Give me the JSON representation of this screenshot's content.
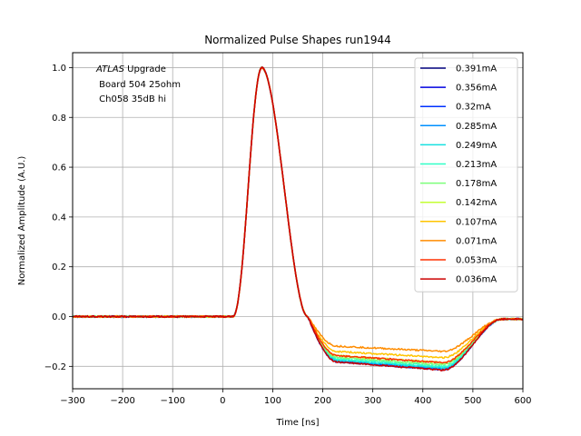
{
  "chart_data": {
    "type": "line",
    "title": "Normalized Pulse Shapes run1944",
    "xlabel": "Time [ns]",
    "ylabel": "Normalized Amplitude (A.U.)",
    "xlim": [
      -300,
      600
    ],
    "ylim": [
      -0.29,
      1.06
    ],
    "xticks": [
      -300,
      -200,
      -100,
      0,
      100,
      200,
      300,
      400,
      500,
      600
    ],
    "yticks": [
      -0.2,
      0.0,
      0.2,
      0.4,
      0.6,
      0.8,
      1.0
    ],
    "xtick_labels": [
      "−300",
      "−200",
      "−100",
      "0",
      "100",
      "200",
      "300",
      "400",
      "500",
      "600"
    ],
    "ytick_labels": [
      "−0.2",
      "0.0",
      "0.2",
      "0.4",
      "0.6",
      "0.8",
      "1.0"
    ],
    "grid": true,
    "legend_position": "top-right",
    "annotation": {
      "italic": "ATLAS",
      "rest": " Upgrade",
      "line2": " Board 504 25ohm",
      "line3": " Ch058 35dB hi"
    },
    "series": [
      {
        "name": "0.391mA",
        "color": "#00007f",
        "undershoot": -0.213,
        "return_start": 440,
        "return_end": 560
      },
      {
        "name": "0.356mA",
        "color": "#0000e0",
        "undershoot": -0.213,
        "return_start": 440,
        "return_end": 560
      },
      {
        "name": "0.32mA",
        "color": "#0030ff",
        "undershoot": -0.213,
        "return_start": 440,
        "return_end": 560
      },
      {
        "name": "0.285mA",
        "color": "#0090ff",
        "undershoot": -0.21,
        "return_start": 440,
        "return_end": 560
      },
      {
        "name": "0.249mA",
        "color": "#16e0e0",
        "undershoot": -0.205,
        "return_start": 440,
        "return_end": 560
      },
      {
        "name": "0.213mA",
        "color": "#30ffc7",
        "undershoot": -0.2,
        "return_start": 440,
        "return_end": 560
      },
      {
        "name": "0.178mA",
        "color": "#7dff7a",
        "undershoot": -0.193,
        "return_start": 440,
        "return_end": 560
      },
      {
        "name": "0.142mA",
        "color": "#c4ff33",
        "undershoot": -0.185,
        "return_start": 440,
        "return_end": 560
      },
      {
        "name": "0.107mA",
        "color": "#ffc400",
        "undershoot": -0.165,
        "return_start": 440,
        "return_end": 560
      },
      {
        "name": "0.071mA",
        "color": "#ff8c00",
        "undershoot": -0.14,
        "return_start": 440,
        "return_end": 560
      },
      {
        "name": "0.053mA",
        "color": "#ff3000",
        "undershoot": -0.185,
        "return_start": 440,
        "return_end": 560
      },
      {
        "name": "0.036mA",
        "color": "#cc0000",
        "undershoot": -0.215,
        "return_start": 440,
        "return_end": 560
      }
    ],
    "pulse": {
      "baseline": 0.0,
      "peak_time": 78,
      "peak_value": 1.0,
      "rise_start": 20,
      "zero_cross": 170,
      "end_value": -0.01
    }
  }
}
